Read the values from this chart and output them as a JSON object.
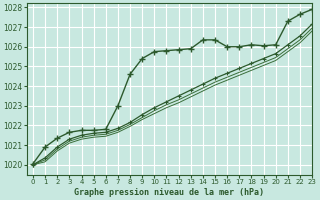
{
  "title": "Graphe pression niveau de la mer (hPa)",
  "bg_color": "#c8e8e0",
  "grid_color": "#ffffff",
  "line_color_main": "#2d5a2d",
  "line_color_thin": "#3a6e3a",
  "xlim": [
    -0.5,
    23
  ],
  "ylim": [
    1019.5,
    1028.2
  ],
  "xticks": [
    0,
    1,
    2,
    3,
    4,
    5,
    6,
    7,
    8,
    9,
    10,
    11,
    12,
    13,
    14,
    15,
    16,
    17,
    18,
    19,
    20,
    21,
    22,
    23
  ],
  "yticks": [
    1020,
    1021,
    1022,
    1023,
    1024,
    1025,
    1026,
    1027,
    1028
  ],
  "series1_x": [
    0,
    1,
    2,
    3,
    4,
    5,
    6,
    7,
    8,
    9,
    10,
    11,
    12,
    13,
    14,
    15,
    16,
    17,
    18,
    19,
    20,
    21,
    22,
    23
  ],
  "series1_y": [
    1020.05,
    1020.9,
    1021.35,
    1021.65,
    1021.75,
    1021.75,
    1021.8,
    1023.0,
    1024.6,
    1025.4,
    1025.75,
    1025.8,
    1025.85,
    1025.9,
    1026.35,
    1026.35,
    1026.0,
    1026.0,
    1026.1,
    1026.05,
    1026.1,
    1027.3,
    1027.65,
    1027.9
  ],
  "series2_x": [
    0,
    1,
    2,
    3,
    4,
    5,
    6,
    7,
    8,
    9,
    10,
    11,
    12,
    13,
    14,
    15,
    16,
    17,
    18,
    19,
    20,
    21,
    22,
    23
  ],
  "series2_y": [
    1020.0,
    1020.35,
    1020.9,
    1021.3,
    1021.5,
    1021.6,
    1021.65,
    1021.85,
    1022.15,
    1022.55,
    1022.9,
    1023.2,
    1023.5,
    1023.8,
    1024.1,
    1024.4,
    1024.65,
    1024.9,
    1025.15,
    1025.4,
    1025.65,
    1026.1,
    1026.55,
    1027.15
  ],
  "series3_x": [
    0,
    1,
    2,
    3,
    4,
    5,
    6,
    7,
    8,
    9,
    10,
    11,
    12,
    13,
    14,
    15,
    16,
    17,
    18,
    19,
    20,
    21,
    22,
    23
  ],
  "series3_y": [
    1020.0,
    1020.25,
    1020.8,
    1021.2,
    1021.4,
    1021.5,
    1021.55,
    1021.75,
    1022.05,
    1022.4,
    1022.75,
    1023.05,
    1023.3,
    1023.6,
    1023.9,
    1024.2,
    1024.45,
    1024.7,
    1024.95,
    1025.2,
    1025.45,
    1025.9,
    1026.35,
    1026.95
  ],
  "series4_x": [
    0,
    1,
    2,
    3,
    4,
    5,
    6,
    7,
    8,
    9,
    10,
    11,
    12,
    13,
    14,
    15,
    16,
    17,
    18,
    19,
    20,
    21,
    22,
    23
  ],
  "series4_y": [
    1020.0,
    1020.15,
    1020.7,
    1021.1,
    1021.3,
    1021.4,
    1021.45,
    1021.65,
    1021.95,
    1022.3,
    1022.6,
    1022.9,
    1023.15,
    1023.45,
    1023.75,
    1024.05,
    1024.3,
    1024.55,
    1024.8,
    1025.05,
    1025.3,
    1025.75,
    1026.2,
    1026.8
  ]
}
